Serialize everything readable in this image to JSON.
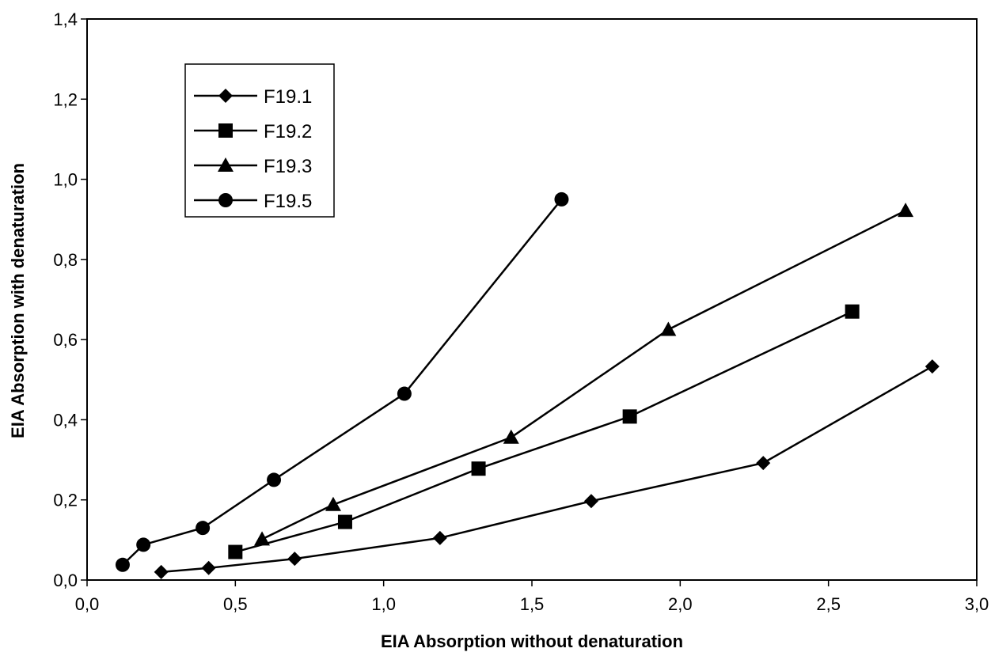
{
  "chart_data": {
    "type": "line",
    "title": "",
    "xlabel": "EIA Absorption without denaturation",
    "ylabel": "EIA Absorption with denaturation",
    "xlim": [
      0.0,
      3.0
    ],
    "ylim": [
      0.0,
      1.4
    ],
    "x_ticks": [
      "0,0",
      "0,5",
      "1,0",
      "1,5",
      "2,0",
      "2,5",
      "3,0"
    ],
    "y_ticks": [
      "0,0",
      "0,2",
      "0,4",
      "0,6",
      "0,8",
      "1,0",
      "1,2",
      "1,4"
    ],
    "grid": false,
    "legend_position": "top-left",
    "series": [
      {
        "name": "F19.1",
        "marker": "diamond",
        "color": "#000000",
        "points": [
          [
            0.25,
            0.02
          ],
          [
            0.41,
            0.03
          ],
          [
            0.7,
            0.053
          ],
          [
            1.19,
            0.105
          ],
          [
            1.7,
            0.197
          ],
          [
            2.28,
            0.292
          ],
          [
            2.85,
            0.533
          ]
        ]
      },
      {
        "name": "F19.2",
        "marker": "square",
        "color": "#000000",
        "points": [
          [
            0.5,
            0.07
          ],
          [
            0.87,
            0.145
          ],
          [
            1.32,
            0.278
          ],
          [
            1.83,
            0.408
          ],
          [
            2.58,
            0.67
          ]
        ]
      },
      {
        "name": "F19.3",
        "marker": "triangle",
        "color": "#000000",
        "points": [
          [
            0.59,
            0.102
          ],
          [
            0.83,
            0.188
          ],
          [
            1.43,
            0.356
          ],
          [
            1.96,
            0.625
          ],
          [
            2.76,
            0.922
          ]
        ]
      },
      {
        "name": "F19.5",
        "marker": "circle",
        "color": "#000000",
        "points": [
          [
            0.12,
            0.038
          ],
          [
            0.19,
            0.088
          ],
          [
            0.39,
            0.13
          ],
          [
            0.63,
            0.25
          ],
          [
            1.07,
            0.465
          ],
          [
            1.6,
            0.95
          ]
        ]
      }
    ]
  }
}
